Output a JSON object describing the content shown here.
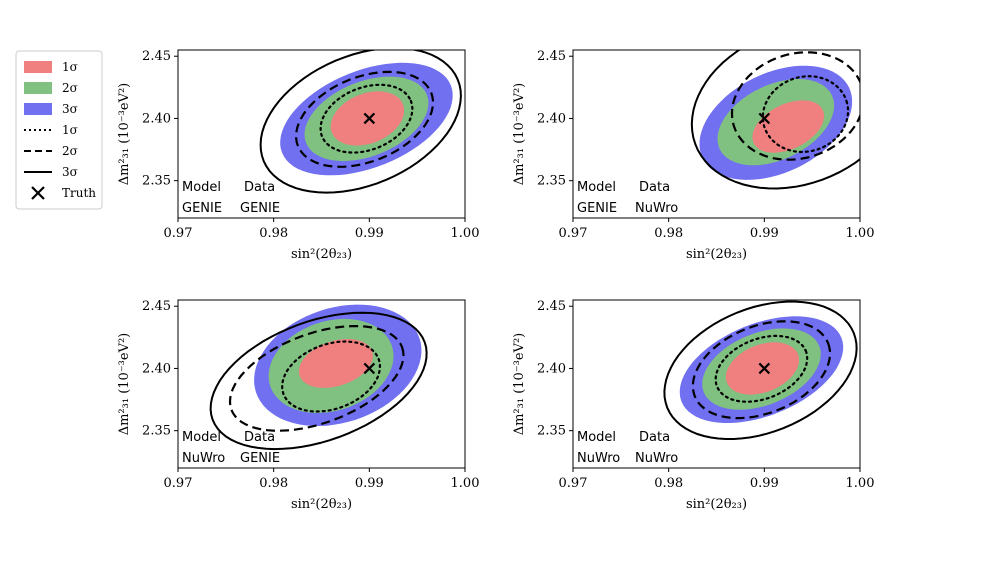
{
  "legend": {
    "entries": [
      {
        "label": "1σ",
        "kind": "fill",
        "color": "#f08080"
      },
      {
        "label": "2σ",
        "kind": "fill",
        "color": "#80c080"
      },
      {
        "label": "3σ",
        "kind": "fill",
        "color": "#7070f0"
      },
      {
        "label": "1σ",
        "kind": "line",
        "style": "dotted"
      },
      {
        "label": "2σ",
        "kind": "line",
        "style": "dashed"
      },
      {
        "label": "3σ",
        "kind": "line",
        "style": "solid"
      },
      {
        "label": "Truth",
        "kind": "marker",
        "marker": "x"
      }
    ]
  },
  "axes": {
    "xlabel": "sin²(2θ₂₃)",
    "ylabel": "Δm²₃₁ (10⁻³eV²)",
    "xticks": [
      "0.97",
      "0.98",
      "0.99",
      "1.00"
    ],
    "yticks": [
      "2.35",
      "2.40",
      "2.45"
    ]
  },
  "chart_data": [
    {
      "type": "contour",
      "model_header": "Model",
      "data_header": "Data",
      "model": "GENIE",
      "data": "GENIE",
      "xlim": [
        0.97,
        1.0
      ],
      "ylim": [
        2.32,
        2.455
      ],
      "truth": [
        0.99,
        2.4
      ],
      "filled": [
        {
          "level": "3σ",
          "cx": 0.9897,
          "cy": 2.3995,
          "a": 0.0095,
          "b": 0.039,
          "tilt": -0.38
        },
        {
          "level": "2σ",
          "cx": 0.9897,
          "cy": 2.3997,
          "a": 0.0068,
          "b": 0.03,
          "tilt": -0.38
        },
        {
          "level": "1σ",
          "cx": 0.9898,
          "cy": 2.4,
          "a": 0.004,
          "b": 0.02,
          "tilt": -0.38
        }
      ],
      "lines": [
        {
          "level": "3σ",
          "style": "solid",
          "cx": 0.9891,
          "cy": 2.3985,
          "a": 0.011,
          "b": 0.052,
          "tilt": -0.4
        },
        {
          "level": "2σ",
          "style": "dashed",
          "cx": 0.9895,
          "cy": 2.3993,
          "a": 0.0075,
          "b": 0.034,
          "tilt": -0.38
        },
        {
          "level": "1σ",
          "style": "dotted",
          "cx": 0.9897,
          "cy": 2.3998,
          "a": 0.005,
          "b": 0.025,
          "tilt": -0.38
        }
      ]
    },
    {
      "type": "contour",
      "model_header": "Model",
      "data_header": "Data",
      "model": "GENIE",
      "data": "NuWro",
      "xlim": [
        0.97,
        1.0
      ],
      "ylim": [
        2.32,
        2.455
      ],
      "truth": [
        0.99,
        2.4
      ],
      "filled": [
        {
          "level": "3σ",
          "cx": 0.9912,
          "cy": 2.3965,
          "a": 0.0085,
          "b": 0.04,
          "tilt": -0.45
        },
        {
          "level": "2σ",
          "cx": 0.9912,
          "cy": 2.397,
          "a": 0.0065,
          "b": 0.03,
          "tilt": -0.45
        },
        {
          "level": "1σ",
          "cx": 0.9925,
          "cy": 2.3935,
          "a": 0.004,
          "b": 0.018,
          "tilt": -0.45
        }
      ],
      "lines": [
        {
          "level": "3σ",
          "style": "solid",
          "cx": 0.9933,
          "cy": 2.409,
          "a": 0.0112,
          "b": 0.062,
          "tilt": -0.35
        },
        {
          "level": "2σ",
          "style": "dashed",
          "cx": 0.9935,
          "cy": 2.41,
          "a": 0.007,
          "b": 0.042,
          "tilt": -0.3
        },
        {
          "level": "1σ",
          "style": "dotted",
          "cx": 0.9943,
          "cy": 2.4035,
          "a": 0.0045,
          "b": 0.03,
          "tilt": -0.3
        }
      ]
    },
    {
      "type": "contour",
      "model_header": "Model",
      "data_header": "Data",
      "model": "NuWro",
      "data": "GENIE",
      "xlim": [
        0.97,
        1.0
      ],
      "ylim": [
        2.32,
        2.455
      ],
      "truth": [
        0.99,
        2.4
      ],
      "filled": [
        {
          "level": "3σ",
          "cx": 0.9867,
          "cy": 2.4025,
          "a": 0.009,
          "b": 0.046,
          "tilt": -0.32
        },
        {
          "level": "2σ",
          "cx": 0.986,
          "cy": 2.402,
          "a": 0.0067,
          "b": 0.036,
          "tilt": -0.32
        },
        {
          "level": "1σ",
          "cx": 0.9865,
          "cy": 2.404,
          "a": 0.004,
          "b": 0.018,
          "tilt": -0.32
        }
      ],
      "lines": [
        {
          "level": "3σ",
          "style": "solid",
          "cx": 0.9847,
          "cy": 2.39,
          "a": 0.0118,
          "b": 0.048,
          "tilt": -0.35
        },
        {
          "level": "2σ",
          "style": "dashed",
          "cx": 0.9845,
          "cy": 2.392,
          "a": 0.0095,
          "b": 0.036,
          "tilt": -0.35
        },
        {
          "level": "1σ",
          "style": "dotted",
          "cx": 0.986,
          "cy": 2.3935,
          "a": 0.0053,
          "b": 0.026,
          "tilt": -0.35
        }
      ]
    },
    {
      "type": "contour",
      "model_header": "Model",
      "data_header": "Data",
      "model": "NuWro",
      "data": "NuWro",
      "xlim": [
        0.97,
        1.0
      ],
      "ylim": [
        2.32,
        2.455
      ],
      "truth": [
        0.99,
        2.4
      ],
      "filled": [
        {
          "level": "3σ",
          "cx": 0.9897,
          "cy": 2.399,
          "a": 0.009,
          "b": 0.037,
          "tilt": -0.38
        },
        {
          "level": "2σ",
          "cx": 0.9897,
          "cy": 2.3995,
          "a": 0.0065,
          "b": 0.029,
          "tilt": -0.38
        },
        {
          "level": "1σ",
          "cx": 0.9898,
          "cy": 2.4,
          "a": 0.004,
          "b": 0.019,
          "tilt": -0.38
        }
      ],
      "lines": [
        {
          "level": "3σ",
          "style": "solid",
          "cx": 0.9896,
          "cy": 2.3985,
          "a": 0.0105,
          "b": 0.05,
          "tilt": -0.38
        },
        {
          "level": "2σ",
          "style": "dashed",
          "cx": 0.9897,
          "cy": 2.399,
          "a": 0.0075,
          "b": 0.035,
          "tilt": -0.38
        },
        {
          "level": "1σ",
          "style": "dotted",
          "cx": 0.9897,
          "cy": 2.3997,
          "a": 0.005,
          "b": 0.024,
          "tilt": -0.38
        }
      ]
    }
  ]
}
